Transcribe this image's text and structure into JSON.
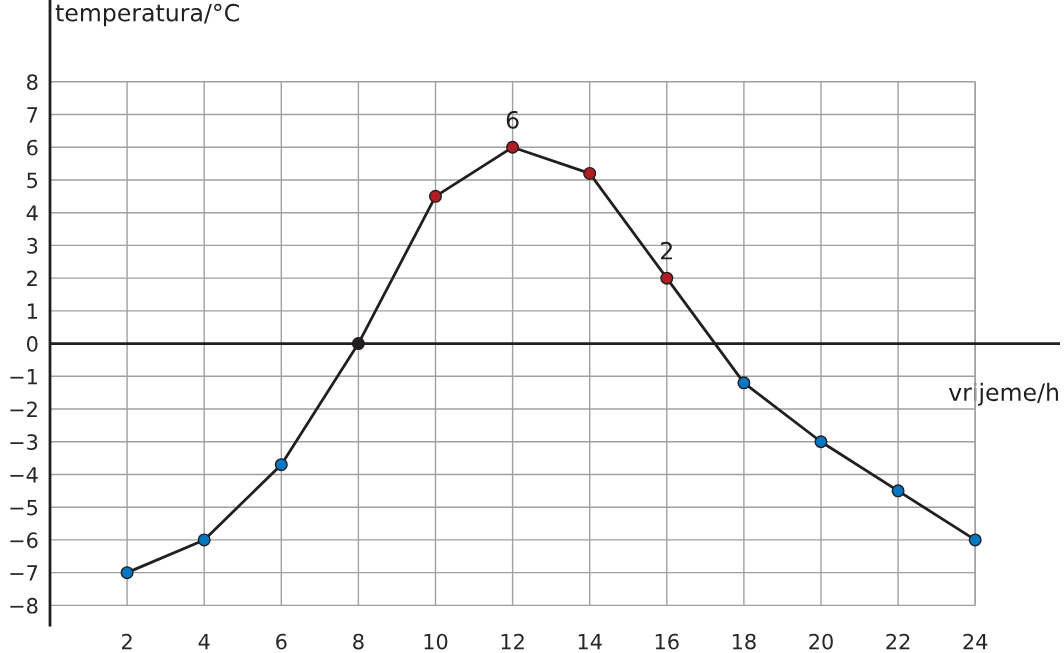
{
  "chart_data": {
    "type": "line",
    "xlabel": "vrijeme/h",
    "ylabel": "temperatura/°C",
    "x": [
      2,
      4,
      6,
      8,
      10,
      12,
      14,
      16,
      18,
      20,
      22,
      24
    ],
    "series": [
      {
        "color": "#231f20",
        "values": [
          -7,
          -6,
          -3.7,
          0,
          4.5,
          6,
          5.2,
          2,
          -1.2,
          -3,
          -4.5,
          -6
        ],
        "colors": [
          "#0077c0",
          "#0077c0",
          "#0077c0",
          "#231f20",
          "#b01e23",
          "#b01e23",
          "#b01e23",
          "#b01e23",
          "#0077c0",
          "#0077c0",
          "#0077c0",
          "#0077c0"
        ]
      }
    ],
    "annotations": [
      {
        "text": "6",
        "x": 12,
        "y": 6
      },
      {
        "text": "2",
        "x": 16,
        "y": 2
      }
    ],
    "xlim": [
      0,
      26.2
    ],
    "ylim": [
      -8.6,
      10.5
    ],
    "xticks": [
      2,
      4,
      6,
      8,
      10,
      12,
      14,
      16,
      18,
      20,
      22,
      24
    ],
    "yticks": [
      -8,
      -7,
      -6,
      -5,
      -4,
      -3,
      -2,
      -1,
      0,
      1,
      2,
      3,
      4,
      5,
      6,
      7,
      8
    ],
    "ref_lines": [
      {
        "axis": "y",
        "value": 0,
        "color": "#231f20"
      }
    ],
    "grid": true,
    "marker": "circle",
    "line_style": "solid"
  }
}
